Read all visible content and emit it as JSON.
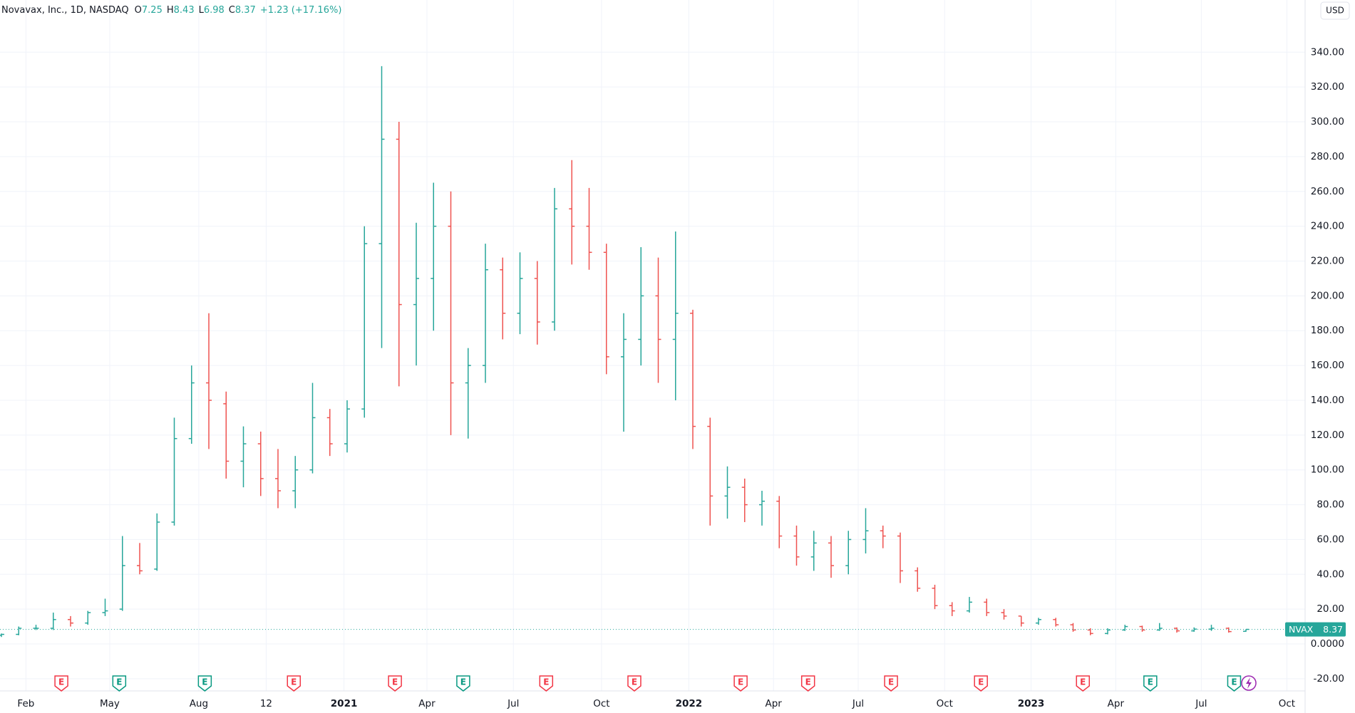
{
  "chart_data": {
    "type": "ohlc",
    "title": "Novavax, Inc., 1D, NASDAQ",
    "legend": {
      "o_label": "O",
      "o": 7.25,
      "h_label": "H",
      "h": 8.43,
      "l_label": "L",
      "l": 6.98,
      "c_label": "C",
      "c": 8.37,
      "change": "+1.23 (+17.16%)"
    },
    "currency": "USD",
    "up_color": "#26a69a",
    "down_color": "#ef5350",
    "ylim": [
      -27,
      370
    ],
    "yticks": [
      {
        "value": -20,
        "label": "-20.00"
      },
      {
        "value": 0,
        "label": "0.0000"
      },
      {
        "value": 20,
        "label": "20.00"
      },
      {
        "value": 40,
        "label": "40.00"
      },
      {
        "value": 60,
        "label": "60.00"
      },
      {
        "value": 80,
        "label": "80.00"
      },
      {
        "value": 100,
        "label": "100.00"
      },
      {
        "value": 120,
        "label": "120.00"
      },
      {
        "value": 140,
        "label": "140.00"
      },
      {
        "value": 160,
        "label": "160.00"
      },
      {
        "value": 180,
        "label": "180.00"
      },
      {
        "value": 200,
        "label": "200.00"
      },
      {
        "value": 220,
        "label": "220.00"
      },
      {
        "value": 240,
        "label": "240.00"
      },
      {
        "value": 260,
        "label": "260.00"
      },
      {
        "value": 280,
        "label": "280.00"
      },
      {
        "value": 300,
        "label": "300.00"
      },
      {
        "value": 320,
        "label": "320.00"
      },
      {
        "value": 340,
        "label": "340.00"
      }
    ],
    "x_labels": [
      "Feb",
      "May",
      "Aug",
      "12",
      "2021",
      "Apr",
      "Jul",
      "Oct",
      "2022",
      "Apr",
      "Jul",
      "Oct",
      "2023",
      "Apr",
      "Jul",
      "Oct"
    ],
    "grid": true,
    "last_price": {
      "symbol": "NVAX",
      "value": 8.37
    },
    "events": [
      {
        "label": "E",
        "color": "#f23645"
      },
      {
        "label": "E",
        "color": "#089981"
      },
      {
        "label": "E",
        "color": "#089981"
      },
      {
        "label": "E",
        "color": "#f23645"
      },
      {
        "label": "E",
        "color": "#f23645"
      },
      {
        "label": "E",
        "color": "#089981"
      },
      {
        "label": "E",
        "color": "#f23645"
      },
      {
        "label": "E",
        "color": "#f23645"
      },
      {
        "label": "E",
        "color": "#f23645"
      },
      {
        "label": "E",
        "color": "#f23645"
      },
      {
        "label": "E",
        "color": "#f23645"
      },
      {
        "label": "E",
        "color": "#f23645"
      },
      {
        "label": "E",
        "color": "#f23645"
      },
      {
        "label": "E",
        "color": "#089981"
      },
      {
        "label": "E",
        "color": "#089981"
      }
    ],
    "bars": [
      [
        5,
        6,
        4,
        5.5
      ],
      [
        5.5,
        10,
        5,
        9
      ],
      [
        9,
        11,
        8,
        9
      ],
      [
        9,
        18,
        8,
        14
      ],
      [
        14,
        16,
        10,
        12
      ],
      [
        12,
        19,
        11,
        18
      ],
      [
        18,
        26,
        16,
        19
      ],
      [
        20,
        62,
        19,
        45
      ],
      [
        45,
        58,
        40,
        42
      ],
      [
        43,
        75,
        42,
        70
      ],
      [
        70,
        130,
        68,
        118
      ],
      [
        118,
        160,
        115,
        150
      ],
      [
        150,
        190,
        112,
        140
      ],
      [
        138,
        145,
        95,
        105
      ],
      [
        105,
        125,
        90,
        115
      ],
      [
        115,
        122,
        85,
        95
      ],
      [
        95,
        112,
        78,
        88
      ],
      [
        88,
        108,
        78,
        100
      ],
      [
        100,
        150,
        98,
        130
      ],
      [
        130,
        135,
        108,
        115
      ],
      [
        115,
        140,
        110,
        135
      ],
      [
        135,
        240,
        130,
        230
      ],
      [
        230,
        332,
        170,
        290
      ],
      [
        290,
        300,
        148,
        195
      ],
      [
        195,
        242,
        160,
        210
      ],
      [
        210,
        265,
        180,
        240
      ],
      [
        240,
        260,
        120,
        150
      ],
      [
        150,
        170,
        118,
        160
      ],
      [
        160,
        230,
        150,
        215
      ],
      [
        215,
        222,
        175,
        190
      ],
      [
        190,
        225,
        178,
        210
      ],
      [
        210,
        220,
        172,
        185
      ],
      [
        185,
        262,
        180,
        250
      ],
      [
        250,
        278,
        218,
        240
      ],
      [
        240,
        262,
        215,
        225
      ],
      [
        225,
        230,
        155,
        165
      ],
      [
        165,
        190,
        122,
        175
      ],
      [
        175,
        228,
        160,
        200
      ],
      [
        200,
        222,
        150,
        175
      ],
      [
        175,
        237,
        140,
        190
      ],
      [
        190,
        192,
        112,
        125
      ],
      [
        125,
        130,
        68,
        85
      ],
      [
        85,
        102,
        72,
        90
      ],
      [
        90,
        95,
        70,
        80
      ],
      [
        80,
        88,
        68,
        82
      ],
      [
        82,
        85,
        55,
        62
      ],
      [
        62,
        68,
        45,
        50
      ],
      [
        50,
        65,
        42,
        58
      ],
      [
        58,
        62,
        38,
        45
      ],
      [
        45,
        65,
        40,
        60
      ],
      [
        60,
        78,
        52,
        65
      ],
      [
        65,
        68,
        55,
        62
      ],
      [
        62,
        64,
        35,
        42
      ],
      [
        42,
        44,
        30,
        32
      ],
      [
        32,
        34,
        20,
        22
      ],
      [
        22,
        24,
        16,
        19
      ],
      [
        19,
        27,
        18,
        24
      ],
      [
        24,
        26,
        16,
        18
      ],
      [
        18,
        20,
        14,
        16
      ],
      [
        16,
        16,
        10,
        12
      ],
      [
        12,
        15,
        11,
        14
      ],
      [
        14,
        15,
        10,
        11
      ],
      [
        11,
        12,
        7,
        8
      ],
      [
        8,
        9,
        5,
        6
      ],
      [
        6,
        9,
        5.5,
        8
      ],
      [
        8,
        11,
        7.5,
        10
      ],
      [
        10,
        10.5,
        7,
        8
      ],
      [
        8,
        12,
        7.5,
        9
      ],
      [
        9,
        9.5,
        6.5,
        7.5
      ],
      [
        7.5,
        9.5,
        7,
        8.5
      ],
      [
        8.5,
        11,
        7.5,
        9
      ],
      [
        9,
        9.5,
        6.5,
        7.1
      ],
      [
        7.25,
        8.43,
        6.98,
        8.37
      ]
    ]
  }
}
